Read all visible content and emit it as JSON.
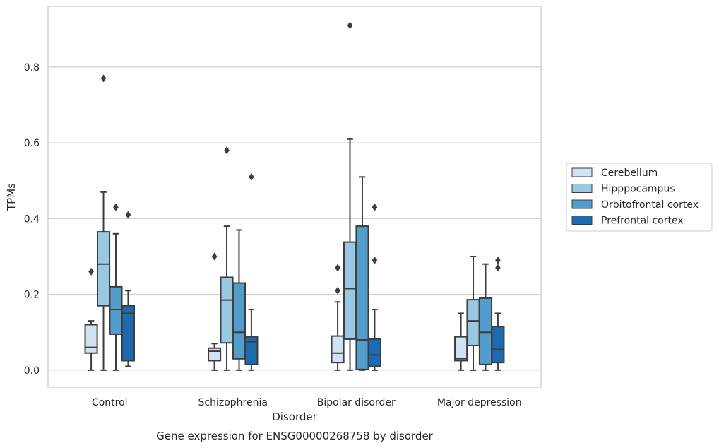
{
  "chart_data": {
    "type": "box",
    "caption": "Gene expression for ENSG00000268758 by disorder",
    "xlabel": "Disorder",
    "ylabel": "TPMs",
    "ylim": [
      -0.045,
      0.96
    ],
    "yticks": [
      0.0,
      0.2,
      0.4,
      0.6,
      0.8
    ],
    "ytick_labels": [
      "0.0",
      "0.2",
      "0.4",
      "0.6",
      "0.8"
    ],
    "grid": "horizontal",
    "legend_position": "right",
    "categories": [
      "Control",
      "Schizophrenia",
      "Bipolar disorder",
      "Major depression"
    ],
    "series": [
      {
        "name": "Cerebellum",
        "color": "#d1e2f2",
        "boxes": [
          {
            "whislo": 0.0,
            "q1": 0.045,
            "med": 0.06,
            "q3": 0.12,
            "whishi": 0.13,
            "fliers": [
              0.26
            ]
          },
          {
            "whislo": 0.0,
            "q1": 0.025,
            "med": 0.05,
            "q3": 0.058,
            "whishi": 0.07,
            "fliers": [
              0.3
            ]
          },
          {
            "whislo": 0.0,
            "q1": 0.02,
            "med": 0.045,
            "q3": 0.09,
            "whishi": 0.18,
            "fliers": [
              0.21,
              0.27
            ]
          },
          {
            "whislo": 0.0,
            "q1": 0.025,
            "med": 0.03,
            "q3": 0.088,
            "whishi": 0.15,
            "fliers": []
          }
        ]
      },
      {
        "name": "Hipppocampus",
        "color": "#9ac8e0",
        "boxes": [
          {
            "whislo": 0.0,
            "q1": 0.17,
            "med": 0.28,
            "q3": 0.365,
            "whishi": 0.47,
            "fliers": [
              0.77
            ]
          },
          {
            "whislo": 0.0,
            "q1": 0.072,
            "med": 0.185,
            "q3": 0.245,
            "whishi": 0.38,
            "fliers": [
              0.58
            ]
          },
          {
            "whislo": 0.0,
            "q1": 0.082,
            "med": 0.215,
            "q3": 0.338,
            "whishi": 0.61,
            "fliers": [
              0.91
            ]
          },
          {
            "whislo": 0.0,
            "q1": 0.065,
            "med": 0.13,
            "q3": 0.186,
            "whishi": 0.3,
            "fliers": []
          }
        ]
      },
      {
        "name": "Orbitofrontal cortex",
        "color": "#529dcc",
        "boxes": [
          {
            "whislo": 0.0,
            "q1": 0.095,
            "med": 0.16,
            "q3": 0.22,
            "whishi": 0.36,
            "fliers": [
              0.43
            ]
          },
          {
            "whislo": 0.0,
            "q1": 0.03,
            "med": 0.1,
            "q3": 0.23,
            "whishi": 0.37,
            "fliers": []
          },
          {
            "whislo": 0.0,
            "q1": 0.002,
            "med": 0.08,
            "q3": 0.38,
            "whishi": 0.51,
            "fliers": []
          },
          {
            "whislo": 0.0,
            "q1": 0.015,
            "med": 0.1,
            "q3": 0.19,
            "whishi": 0.28,
            "fliers": []
          }
        ]
      },
      {
        "name": "Prefrontal cortex",
        "color": "#1c6aaf",
        "boxes": [
          {
            "whislo": 0.01,
            "q1": 0.025,
            "med": 0.15,
            "q3": 0.17,
            "whishi": 0.21,
            "fliers": [
              0.41
            ]
          },
          {
            "whislo": 0.0,
            "q1": 0.015,
            "med": 0.075,
            "q3": 0.088,
            "whishi": 0.16,
            "fliers": [
              0.51
            ]
          },
          {
            "whislo": 0.0,
            "q1": 0.01,
            "med": 0.04,
            "q3": 0.082,
            "whishi": 0.16,
            "fliers": [
              0.29,
              0.43
            ]
          },
          {
            "whislo": 0.0,
            "q1": 0.02,
            "med": 0.055,
            "q3": 0.115,
            "whishi": 0.15,
            "fliers": [
              0.27,
              0.29
            ]
          }
        ]
      }
    ]
  }
}
